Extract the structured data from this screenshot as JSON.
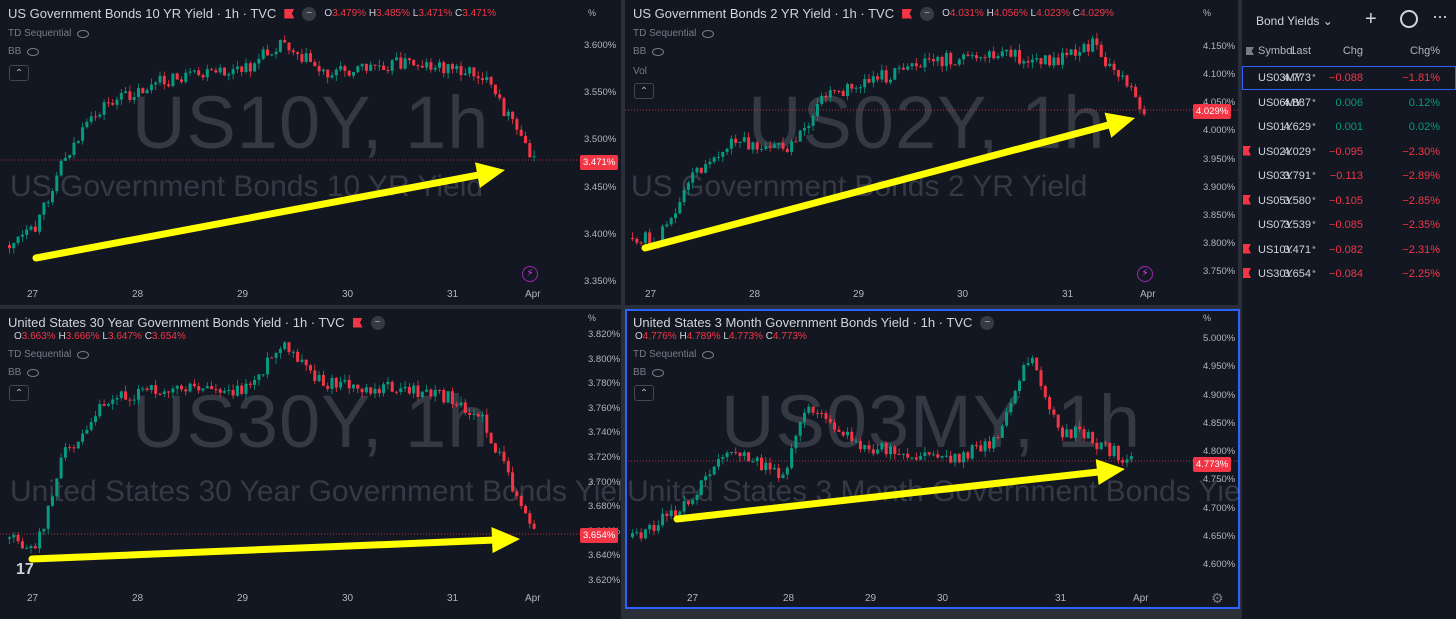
{
  "panes": [
    {
      "id": "us10y",
      "title": "US Government Bonds 10 YR Yield · 1h · TVC",
      "ohlc": {
        "o_label": "O",
        "o": "3.479%",
        "h_label": "H",
        "h": "3.485%",
        "l_label": "L",
        "l": "3.471%",
        "c_label": "C",
        "c": "3.471%"
      },
      "indicators": [
        "TD Sequential",
        "BB"
      ],
      "watermark_symbol": "US10Y, 1h",
      "watermark_name": "US Government Bonds 10 YR Yield",
      "percent_symbol": "%",
      "y_ticks": [
        "3.600%",
        "3.550%",
        "3.500%",
        "3.450%",
        "3.400%",
        "3.350%"
      ],
      "x_ticks": [
        "27",
        "28",
        "29",
        "30",
        "31",
        "Apr"
      ],
      "last_price": "3.471%"
    },
    {
      "id": "us02y",
      "title": "US Government Bonds 2 YR Yield · 1h · TVC",
      "ohlc": {
        "o_label": "O",
        "o": "4.031%",
        "h_label": "H",
        "h": "4.056%",
        "l_label": "L",
        "l": "4.023%",
        "c_label": "C",
        "c": "4.029%"
      },
      "indicators": [
        "TD Sequential",
        "BB",
        "Vol"
      ],
      "watermark_symbol": "US02Y, 1h",
      "watermark_name": "US Government Bonds 2 YR Yield",
      "percent_symbol": "%",
      "y_ticks": [
        "4.150%",
        "4.100%",
        "4.050%",
        "4.000%",
        "3.950%",
        "3.900%",
        "3.850%",
        "3.800%",
        "3.750%"
      ],
      "x_ticks": [
        "27",
        "28",
        "29",
        "30",
        "31",
        "Apr"
      ],
      "last_price": "4.029%"
    },
    {
      "id": "us30y",
      "title": "United States 30 Year Government Bonds Yield · 1h · TVC",
      "ohlc": {
        "o_label": "O",
        "o": "3.663%",
        "h_label": "H",
        "h": "3.666%",
        "l_label": "L",
        "l": "3.647%",
        "c_label": "C",
        "c": "3.654%"
      },
      "indicators": [
        "TD Sequential",
        "BB"
      ],
      "watermark_symbol": "US30Y, 1h",
      "watermark_name": "United States 30 Year Government Bonds Yield",
      "percent_symbol": "%",
      "y_ticks": [
        "3.820%",
        "3.800%",
        "3.780%",
        "3.760%",
        "3.740%",
        "3.720%",
        "3.700%",
        "3.680%",
        "3.660%",
        "3.640%",
        "3.620%"
      ],
      "x_ticks": [
        "27",
        "28",
        "29",
        "30",
        "31",
        "Apr"
      ],
      "last_price": "3.654%"
    },
    {
      "id": "us03my",
      "title": "United States 3 Month Government Bonds Yield · 1h · TVC",
      "ohlc": {
        "o_label": "O",
        "o": "4.776%",
        "h_label": "H",
        "h": "4.789%",
        "l_label": "L",
        "l": "4.773%",
        "c_label": "C",
        "c": "4.773%"
      },
      "indicators": [
        "TD Sequential",
        "BB"
      ],
      "watermark_symbol": "US03MY, 1h",
      "watermark_name": "United States 3 Month Government Bonds Yield",
      "percent_symbol": "%",
      "y_ticks": [
        "5.000%",
        "4.950%",
        "4.900%",
        "4.850%",
        "4.800%",
        "4.750%",
        "4.700%",
        "4.650%",
        "4.600%"
      ],
      "x_ticks": [
        "27",
        "28",
        "29",
        "30",
        "31",
        "Apr"
      ],
      "last_price": "4.773%"
    }
  ],
  "colors": {
    "up": "#089981",
    "down": "#f23645",
    "arrow": "#ffff00",
    "accent": "#2962ff",
    "background": "#131722"
  },
  "icons": {
    "collapse": "chevron-up-icon",
    "bolt": "lightning-icon",
    "eye": "eye-hidden-icon",
    "gear": "settings-gear-icon",
    "logo": "tradingview-logo-icon"
  },
  "watchlist": {
    "title": "Bond Yields",
    "columns": {
      "symbol": "Symbol",
      "last": "Last",
      "chg": "Chg",
      "chgp": "Chg%"
    },
    "rows": [
      {
        "symbol": "US03MY",
        "last": "4.773",
        "chg": "−0.088",
        "chgp": "−1.81%",
        "flag": false,
        "selected": true,
        "dir": "neg"
      },
      {
        "symbol": "US06MY",
        "last": "4.887",
        "chg": "0.006",
        "chgp": "0.12%",
        "flag": false,
        "selected": false,
        "dir": "pos"
      },
      {
        "symbol": "US01Y",
        "last": "4.629",
        "chg": "0.001",
        "chgp": "0.02%",
        "flag": false,
        "selected": false,
        "dir": "pos"
      },
      {
        "symbol": "US02Y",
        "last": "4.029",
        "chg": "−0.095",
        "chgp": "−2.30%",
        "flag": true,
        "selected": false,
        "dir": "neg"
      },
      {
        "symbol": "US03Y",
        "last": "3.791",
        "chg": "−0.113",
        "chgp": "−2.89%",
        "flag": false,
        "selected": false,
        "dir": "neg"
      },
      {
        "symbol": "US05Y",
        "last": "3.580",
        "chg": "−0.105",
        "chgp": "−2.85%",
        "flag": true,
        "selected": false,
        "dir": "neg"
      },
      {
        "symbol": "US07Y",
        "last": "3.539",
        "chg": "−0.085",
        "chgp": "−2.35%",
        "flag": false,
        "selected": false,
        "dir": "neg"
      },
      {
        "symbol": "US10Y",
        "last": "3.471",
        "chg": "−0.082",
        "chgp": "−2.31%",
        "flag": true,
        "selected": false,
        "dir": "neg"
      },
      {
        "symbol": "US30Y",
        "last": "3.654",
        "chg": "−0.084",
        "chgp": "−2.25%",
        "flag": true,
        "selected": false,
        "dir": "neg"
      }
    ]
  }
}
